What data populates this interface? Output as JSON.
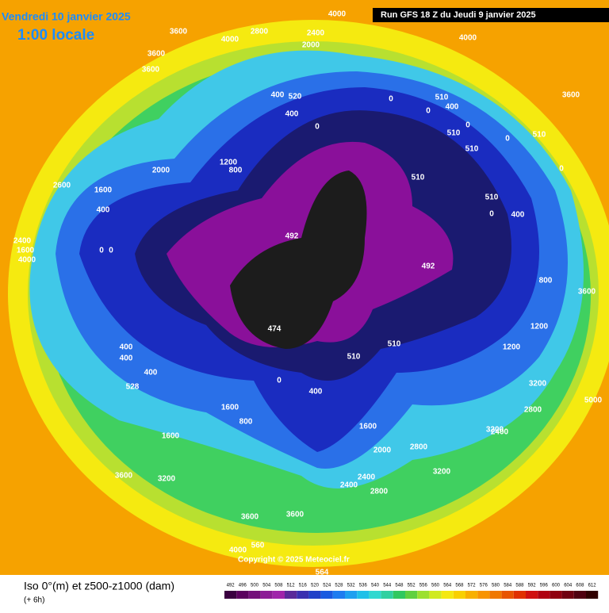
{
  "header": {
    "date": "Vendredi 10 janvier 2025",
    "time": "1:00 locale",
    "run": "Run GFS 18 Z du Jeudi 9 janvier 2025"
  },
  "footer": {
    "title": "Iso 0°(m) et z500-z1000 (dam)",
    "step": "(+ 6h)",
    "copyright": "Copyright © 2025 Meteociel.fr",
    "scale": [
      492,
      496,
      500,
      504,
      508,
      512,
      516,
      520,
      524,
      528,
      532,
      536,
      540,
      544,
      548,
      552,
      556,
      560,
      564,
      568,
      572,
      576,
      580,
      584,
      588,
      592,
      596,
      600,
      604,
      608,
      612
    ]
  },
  "map": {
    "labels": [
      "4000",
      "2800",
      "2400",
      "4000",
      "3600",
      "3600",
      "3600",
      "2000",
      "400",
      "520",
      "400",
      "0",
      "0",
      "0",
      "510",
      "400",
      "510",
      "0",
      "510",
      "0",
      "4000",
      "3600",
      "2000",
      "1200",
      "800",
      "2600",
      "1600",
      "400",
      "2400",
      "1600",
      "4000",
      "0",
      "0",
      "492",
      "492",
      "474",
      "510",
      "510",
      "510",
      "510",
      "0",
      "400",
      "0",
      "400",
      "400",
      "400",
      "528",
      "1600",
      "800",
      "1600",
      "0",
      "400",
      "1600",
      "2000",
      "3600",
      "3200",
      "2400",
      "2800",
      "2400",
      "2800",
      "3200",
      "2400",
      "3600",
      "3600",
      "4000",
      "560",
      "5000",
      "3200",
      "3600",
      "800",
      "1200",
      "2800",
      "3200",
      "564",
      "1200",
      "510"
    ]
  }
}
